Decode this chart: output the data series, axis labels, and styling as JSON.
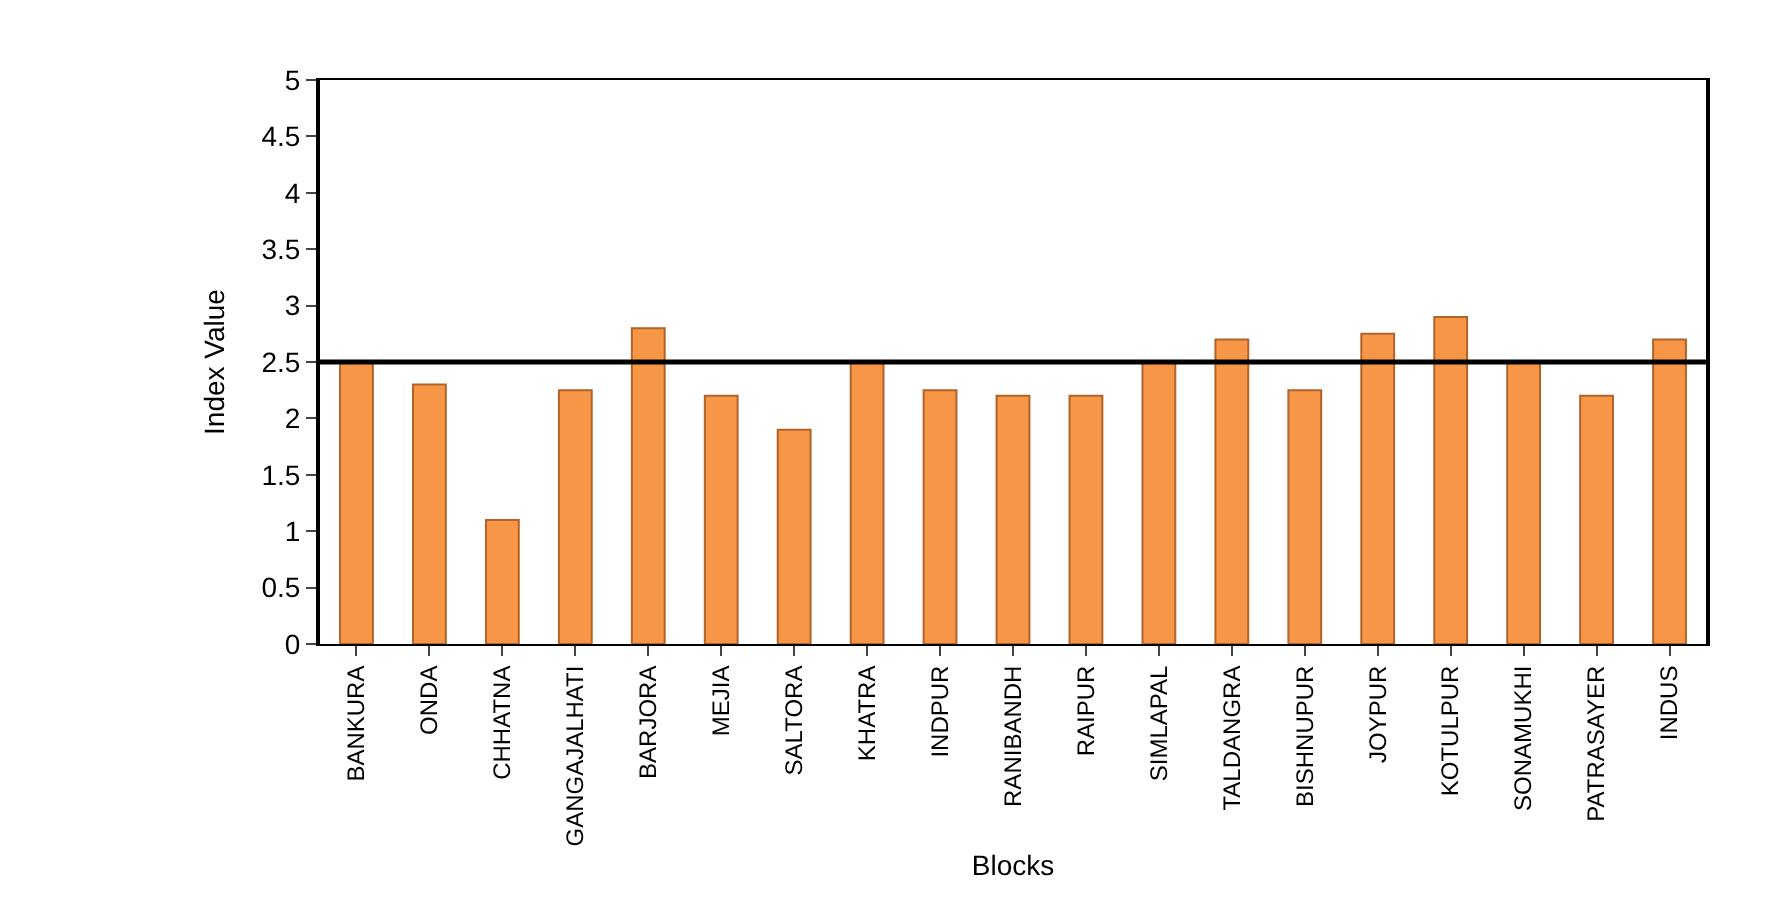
{
  "chart_data": {
    "type": "bar",
    "xlabel": "Blocks",
    "ylabel": "Index Value",
    "categories": [
      "BANKURA",
      "ONDA",
      "CHHATNA",
      "GANGAJALHATI",
      "BARJORA",
      "MEJIA",
      "SALTORA",
      "KHATRA",
      "INDPUR",
      "RANIBANDH",
      "RAIPUR",
      "SIMLAPAL",
      "TALDANGRA",
      "BISHNUPUR",
      "JOYPUR",
      "KOTULPUR",
      "SONAMUKHI",
      "PATRASAYER",
      "INDUS"
    ],
    "values": [
      2.5,
      2.3,
      1.1,
      2.25,
      2.8,
      2.2,
      1.9,
      2.5,
      2.25,
      2.2,
      2.2,
      2.5,
      2.7,
      2.25,
      2.75,
      2.9,
      2.5,
      2.2,
      2.7
    ],
    "color": "#f79646",
    "ylim": [
      0,
      5
    ],
    "yticks": [
      0,
      0.5,
      1,
      1.5,
      2,
      2.5,
      3,
      3.5,
      4,
      4.5,
      5
    ],
    "ref_lines": [
      {
        "axis": "y",
        "value": 2.5,
        "color": "#000000"
      }
    ]
  }
}
